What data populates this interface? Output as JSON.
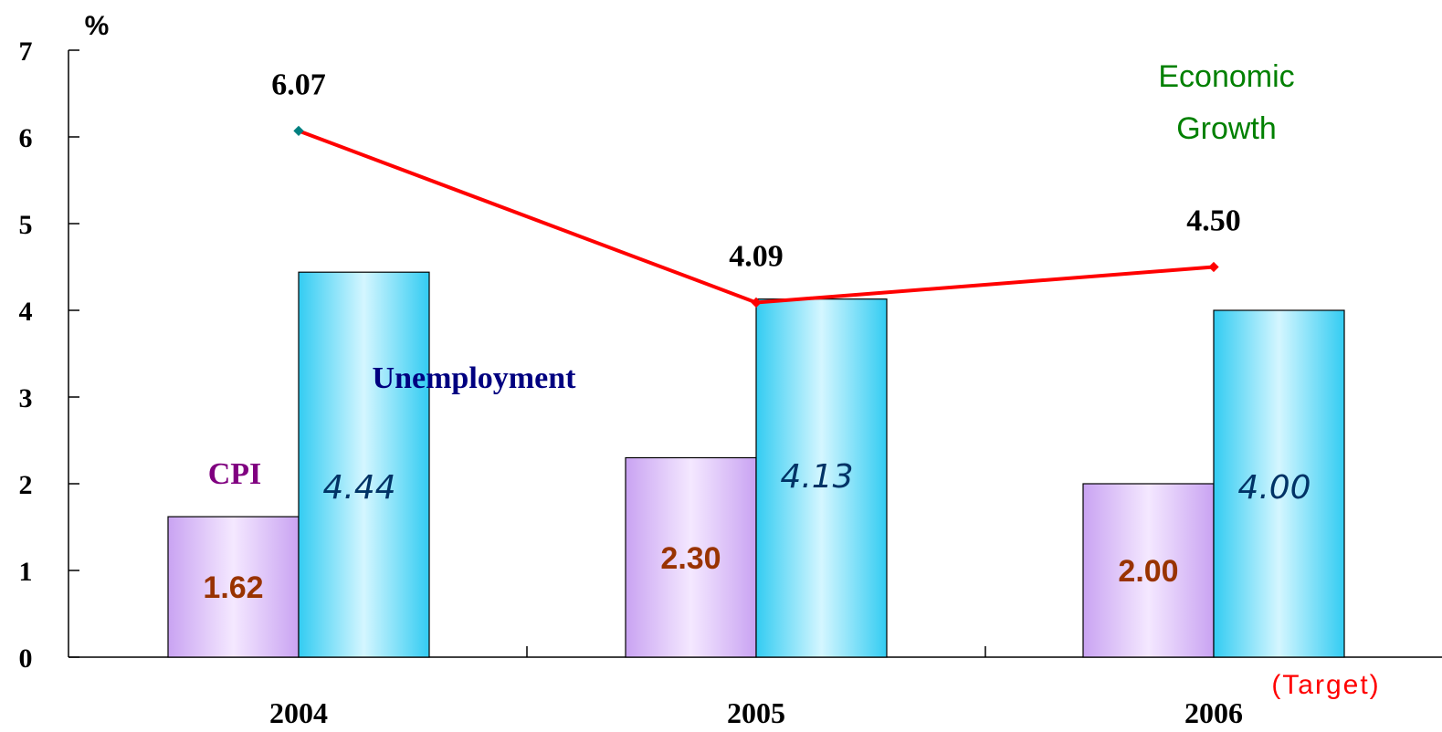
{
  "chart_data": {
    "type": "bar",
    "unit_label": "%",
    "categories": [
      "2004",
      "2005",
      "2006"
    ],
    "target_note": "(Target)",
    "ylim": [
      0,
      7
    ],
    "y_ticks": [
      "0",
      "1",
      "2",
      "3",
      "4",
      "5",
      "6",
      "7"
    ],
    "series": [
      {
        "name": "CPI",
        "kind": "bar",
        "values": [
          1.62,
          2.3,
          2.0
        ],
        "labels": [
          "1.62",
          "2.30",
          "2.00"
        ],
        "name_color": "#800080",
        "label_color": "#993300"
      },
      {
        "name": "Unemployment",
        "kind": "bar",
        "values": [
          4.44,
          4.13,
          4.0
        ],
        "labels": [
          "4.44",
          "4.13",
          "4.00"
        ],
        "name_color": "#000080",
        "label_color": "#003366"
      },
      {
        "name_lines": [
          "Economic",
          "Growth"
        ],
        "kind": "line",
        "values": [
          6.07,
          4.09,
          4.5
        ],
        "labels": [
          "6.07",
          "4.09",
          "4.50"
        ],
        "name_color": "#008000",
        "line_color": "#ff0000"
      }
    ],
    "grid": false
  }
}
